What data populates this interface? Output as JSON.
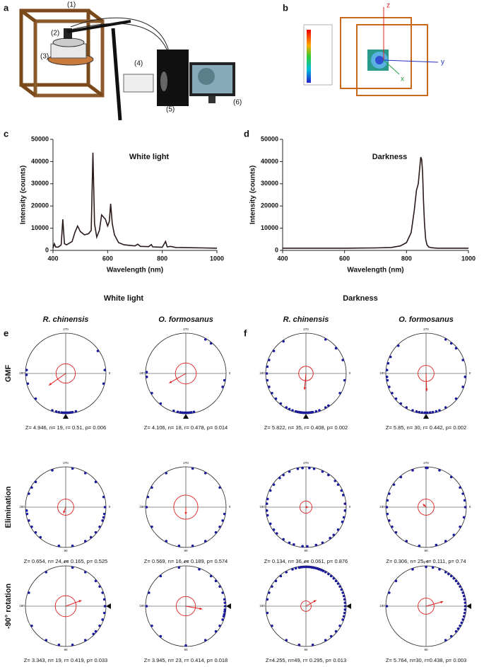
{
  "panel_labels": [
    "a",
    "b",
    "c",
    "d",
    "e",
    "f"
  ],
  "apparatus_labels": [
    "(1)",
    "(2)",
    "(3)",
    "(4)",
    "(5)",
    "(6)"
  ],
  "field_axes": [
    "z",
    "y",
    "x"
  ],
  "condition_headers": [
    "White light",
    "Darkness"
  ],
  "species": [
    "R. chinensis",
    "O. formosanus"
  ],
  "treatments": [
    "GMF",
    "Elimination",
    "-90° rotation"
  ],
  "circular_ticks": [
    270,
    0,
    90,
    180
  ],
  "chart_data": [
    {
      "type": "line",
      "title": "White light",
      "x_label": "Wavelength (nm)",
      "y_label": "Intensity (counts)",
      "color": "#2a1a1a",
      "x": [
        400,
        405,
        410,
        420,
        430,
        436,
        442,
        450,
        470,
        480,
        490,
        500,
        515,
        530,
        540,
        546,
        552,
        560,
        570,
        578,
        585,
        592,
        600,
        606,
        611,
        617,
        625,
        640,
        660,
        700,
        710,
        720,
        750,
        760,
        765,
        780,
        800,
        812,
        818,
        830,
        850,
        900,
        950,
        1000
      ],
      "values": [
        1000,
        3000,
        1500,
        1500,
        2500,
        14000,
        3000,
        2500,
        4000,
        8000,
        11000,
        8500,
        7000,
        7500,
        9000,
        44000,
        12000,
        6000,
        9000,
        16000,
        15000,
        14000,
        11000,
        13000,
        21000,
        12000,
        7000,
        3500,
        2500,
        2000,
        2800,
        1800,
        1700,
        2600,
        1600,
        1500,
        1400,
        4000,
        1600,
        1800,
        1300,
        1200,
        1100,
        1000
      ],
      "xlim": [
        400,
        1000
      ],
      "xticks": [
        400,
        600,
        800,
        1000
      ],
      "ylim": [
        0,
        50000
      ],
      "yticks": [
        0,
        10000,
        20000,
        30000,
        40000,
        50000
      ]
    },
    {
      "type": "line",
      "title": "Darkness",
      "x_label": "Wavelength (nm)",
      "y_label": "Intensity (counts)",
      "color": "#2a1a1a",
      "x": [
        400,
        500,
        600,
        700,
        750,
        780,
        800,
        815,
        825,
        832,
        838,
        842,
        846,
        849,
        852,
        855,
        858,
        862,
        866,
        872,
        880,
        900,
        1000
      ],
      "values": [
        1000,
        1000,
        1000,
        1100,
        1300,
        2000,
        3500,
        8000,
        18000,
        27000,
        30000,
        36000,
        42000,
        41000,
        35000,
        22000,
        12000,
        5000,
        2500,
        1500,
        1200,
        1000,
        1000
      ],
      "xlim": [
        400,
        1000
      ],
      "xticks": [
        400,
        600,
        800,
        1000
      ],
      "ylim": [
        0,
        50000
      ],
      "yticks": [
        0,
        10000,
        20000,
        30000,
        40000,
        50000
      ]
    },
    {
      "type": "circular",
      "caption": "Z= 4.946, n= 19, r= 0.51, p= 0.006",
      "angles": [
        75,
        80,
        83,
        86,
        88,
        90,
        92,
        94,
        96,
        100,
        104,
        110,
        140,
        165,
        178,
        185,
        15,
        355,
        325
      ],
      "mean_angle": 145,
      "r": 0.51,
      "critical_radius": 0.24,
      "expected_angle": 90,
      "color": "#1a1a9a"
    },
    {
      "type": "circular",
      "caption": "Z= 4.106, n= 18, r= 0.478, p= 0.014",
      "angles": [
        78,
        82,
        85,
        88,
        90,
        92,
        95,
        98,
        102,
        108,
        130,
        150,
        175,
        182,
        20,
        10,
        300,
        310
      ],
      "mean_angle": 150,
      "r": 0.478,
      "critical_radius": 0.26,
      "expected_angle": 90,
      "color": "#1a1a9a"
    },
    {
      "type": "circular",
      "caption": "Z= 5.822, n= 35, r= 0.408, p= 0.002",
      "angles": [
        55,
        60,
        70,
        75,
        80,
        82,
        84,
        86,
        88,
        90,
        92,
        94,
        96,
        98,
        100,
        102,
        105,
        110,
        115,
        120,
        130,
        140,
        150,
        160,
        170,
        180,
        190,
        200,
        215,
        235,
        300,
        320,
        340,
        10,
        30
      ],
      "mean_angle": 95,
      "r": 0.408,
      "critical_radius": 0.18,
      "expected_angle": 90,
      "color": "#1a1a9a"
    },
    {
      "type": "circular",
      "caption": "Z= 5.85, n= 30, r= 0.442, p= 0.002",
      "angles": [
        60,
        70,
        75,
        80,
        84,
        88,
        90,
        92,
        96,
        100,
        104,
        110,
        120,
        130,
        140,
        150,
        160,
        170,
        175,
        185,
        195,
        205,
        225,
        300,
        310,
        320,
        340,
        5,
        20,
        40
      ],
      "mean_angle": 88,
      "r": 0.442,
      "critical_radius": 0.2,
      "expected_angle": 90,
      "color": "#1a1a9a"
    },
    {
      "type": "circular",
      "caption": "Z= 0.654, n= 24, r= 0.165, p= 0.525",
      "angles": [
        0,
        10,
        15,
        20,
        30,
        40,
        50,
        60,
        80,
        100,
        130,
        140,
        150,
        160,
        170,
        175,
        200,
        210,
        220,
        250,
        280,
        300,
        320,
        345
      ],
      "mean_angle": 110,
      "r": 0.165,
      "critical_radius": 0.2,
      "color": "#1a1a9a"
    },
    {
      "type": "circular",
      "caption": "Z= 0.569, n= 16, r= 0.189, p= 0.574",
      "angles": [
        10,
        20,
        30,
        40,
        60,
        80,
        100,
        120,
        150,
        180,
        195,
        210,
        240,
        280,
        300,
        330
      ],
      "mean_angle": 90,
      "r": 0.189,
      "critical_radius": 0.3,
      "color": "#1a1a9a"
    },
    {
      "type": "circular",
      "caption": "Z= 0.134, n= 36, r= 0.061, p= 0.876",
      "angles": [
        5,
        15,
        22,
        35,
        45,
        52,
        65,
        75,
        88,
        95,
        108,
        115,
        125,
        138,
        145,
        155,
        168,
        175,
        185,
        192,
        205,
        215,
        228,
        235,
        245,
        258,
        265,
        275,
        282,
        295,
        305,
        318,
        325,
        335,
        342,
        355
      ],
      "mean_angle": 0,
      "r": 0.061,
      "critical_radius": 0.15,
      "color": "#1a1a9a"
    },
    {
      "type": "circular",
      "caption": "Z= 0.306, n= 25, r= 0.111, p= 0.74",
      "angles": [
        0,
        15,
        30,
        45,
        60,
        75,
        100,
        120,
        140,
        150,
        160,
        170,
        180,
        190,
        200,
        215,
        230,
        250,
        270,
        272,
        290,
        310,
        330,
        340,
        350
      ],
      "mean_angle": 225,
      "r": 0.111,
      "critical_radius": 0.2,
      "color": "#1a1a9a"
    },
    {
      "type": "circular",
      "caption": "Z= 3.343, n= 19, r= 0.419, p= 0.033",
      "angles": [
        0,
        10,
        20,
        30,
        40,
        45,
        60,
        80,
        100,
        120,
        150,
        200,
        240,
        280,
        300,
        320,
        330,
        340,
        350
      ],
      "mean_angle": 340,
      "r": 0.419,
      "critical_radius": 0.26,
      "expected_angle": 0,
      "color": "#1a1a9a"
    },
    {
      "type": "circular",
      "caption": "Z= 3.945, n= 23, r= 0.414, p= 0.018",
      "angles": [
        0,
        5,
        8,
        12,
        15,
        20,
        30,
        40,
        60,
        90,
        130,
        150,
        180,
        200,
        230,
        260,
        290,
        310,
        320,
        330,
        340,
        350,
        355
      ],
      "mean_angle": 10,
      "r": 0.414,
      "critical_radius": 0.24,
      "expected_angle": 0,
      "color": "#1a1a9a"
    },
    {
      "type": "circular",
      "caption": "Z=4.255, n=49, r= 0.295, p= 0.013",
      "angles": [
        200,
        210,
        220,
        230,
        240,
        250,
        255,
        260,
        262,
        265,
        268,
        270,
        272,
        275,
        278,
        280,
        282,
        285,
        288,
        290,
        293,
        296,
        300,
        305,
        310,
        315,
        320,
        325,
        330,
        335,
        340,
        345,
        350,
        355,
        0,
        5,
        10,
        15,
        20,
        30,
        40,
        50,
        60,
        80,
        100,
        120,
        150,
        170,
        190
      ],
      "mean_angle": 330,
      "r": 0.295,
      "critical_radius": 0.13,
      "expected_angle": 0,
      "color": "#1a1a9a"
    },
    {
      "type": "circular",
      "caption": "Z= 5.764, n=30, r=0.438, p= 0.003",
      "angles": [
        270,
        280,
        290,
        300,
        305,
        310,
        315,
        320,
        325,
        330,
        335,
        340,
        345,
        350,
        355,
        0,
        5,
        10,
        15,
        20,
        25,
        30,
        35,
        40,
        50,
        60,
        180,
        200,
        220,
        250
      ],
      "mean_angle": 345,
      "r": 0.438,
      "critical_radius": 0.2,
      "expected_angle": 0,
      "color": "#1a1a9a"
    }
  ]
}
